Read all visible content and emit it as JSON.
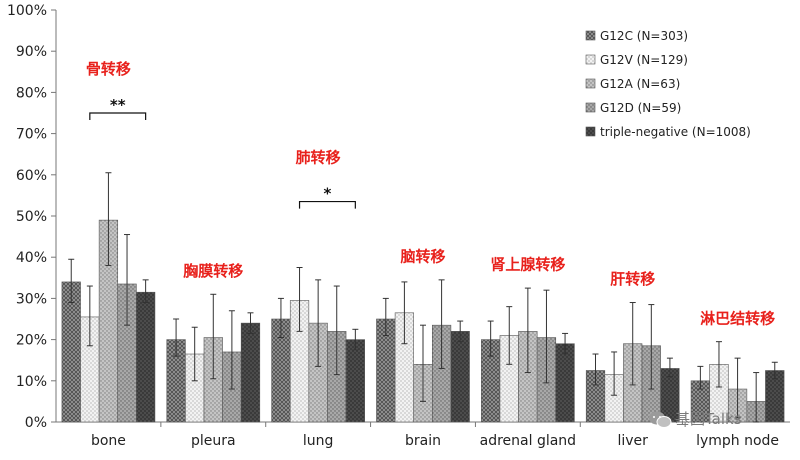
{
  "chart_data": {
    "type": "bar",
    "categories": [
      "bone",
      "pleura",
      "lung",
      "brain",
      "adrenal gland",
      "liver",
      "lymph node"
    ],
    "ylim": [
      0,
      100
    ],
    "yticks": [
      0,
      10,
      20,
      30,
      40,
      50,
      60,
      70,
      80,
      90,
      100
    ],
    "ytick_labels": [
      "0%",
      "10%",
      "20%",
      "30%",
      "40%",
      "50%",
      "60%",
      "70%",
      "80%",
      "90%",
      "100%"
    ],
    "grid": false,
    "legend_position": "top-right",
    "series": [
      {
        "name": "G12C (N=303)",
        "color": "#7f7f7f",
        "pattern": "crosshatch",
        "values": [
          34,
          20,
          25,
          25,
          20,
          12.5,
          10
        ],
        "err_low": [
          29,
          16,
          20.5,
          21,
          16,
          9,
          8
        ],
        "err_high": [
          39.5,
          25,
          30,
          30,
          24.5,
          16.5,
          13.5
        ]
      },
      {
        "name": "G12V (N=129)",
        "color": "#e6e6e6",
        "pattern": "light-check",
        "values": [
          25.5,
          16.5,
          29.5,
          26.5,
          21,
          11.5,
          14
        ],
        "err_low": [
          18.5,
          10,
          22,
          19,
          14,
          6.5,
          8.5
        ],
        "err_high": [
          33,
          23,
          37.5,
          34,
          28,
          17,
          19.5
        ]
      },
      {
        "name": "G12A (N=63)",
        "color": "#b5b5b5",
        "pattern": "dots",
        "values": [
          49,
          20.5,
          24,
          14,
          22,
          19,
          8
        ],
        "err_low": [
          38,
          10.5,
          13.5,
          5,
          12,
          9,
          1
        ],
        "err_high": [
          60.5,
          31,
          34.5,
          23.5,
          32.5,
          29,
          15.5
        ]
      },
      {
        "name": "G12D (N=59)",
        "color": "#a0a0a0",
        "pattern": "dots-dark",
        "values": [
          33.5,
          17,
          22,
          23.5,
          20.5,
          18.5,
          5
        ],
        "err_low": [
          23.5,
          8,
          11.5,
          13,
          9.5,
          8,
          0
        ],
        "err_high": [
          45.5,
          27,
          33,
          34.5,
          32,
          28.5,
          12
        ]
      },
      {
        "name": "triple-negative (N=1008)",
        "color": "#3c3c3c",
        "pattern": "dark-dots",
        "values": [
          31.5,
          24,
          20,
          22,
          19,
          13,
          12.5
        ],
        "err_low": [
          29,
          21.5,
          17.5,
          19.5,
          16.5,
          11,
          10.5
        ],
        "err_high": [
          34.5,
          26.5,
          22.5,
          24.5,
          21.5,
          15.5,
          14.5
        ]
      }
    ],
    "significance": [
      {
        "category": "bone",
        "label": "**"
      },
      {
        "category": "lung",
        "label": "*"
      }
    ],
    "annotations": [
      {
        "category": "bone",
        "text": "骨转移"
      },
      {
        "category": "pleura",
        "text": "胸膜转移"
      },
      {
        "category": "lung",
        "text": "肺转移"
      },
      {
        "category": "brain",
        "text": "脑转移"
      },
      {
        "category": "adrenal gland",
        "text": "肾上腺转移"
      },
      {
        "category": "liver",
        "text": "肝转移"
      },
      {
        "category": "lymph node",
        "text": "淋巴结转移"
      }
    ]
  },
  "watermark": {
    "text": "基因Talks",
    "icon": "wechat-icon"
  }
}
